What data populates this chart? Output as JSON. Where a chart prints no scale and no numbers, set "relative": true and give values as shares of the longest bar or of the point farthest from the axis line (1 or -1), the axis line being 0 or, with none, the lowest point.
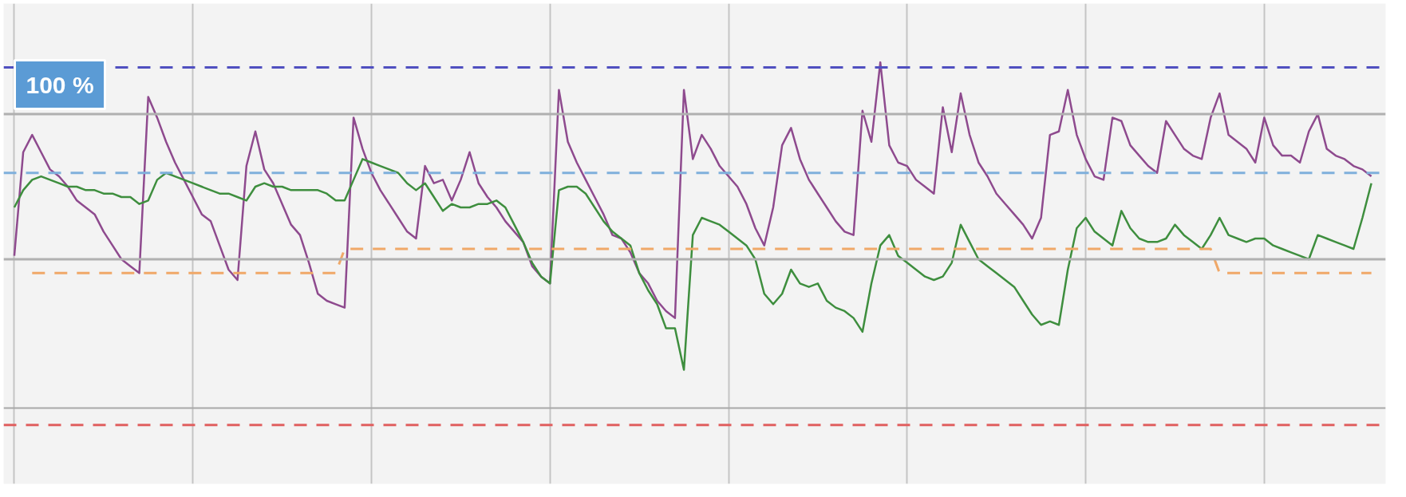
{
  "chart_data": {
    "type": "line",
    "relative": true,
    "tick_labels": false,
    "grid": "x",
    "line_style": "solid",
    "annotations": [
      "100 %"
    ],
    "categories": [
      null,
      null,
      null,
      null,
      null,
      null,
      null,
      null,
      null,
      null,
      null,
      null,
      null,
      null,
      null,
      null,
      null,
      null,
      null,
      null,
      null,
      null,
      null,
      null,
      null,
      null,
      null,
      null,
      null,
      null,
      null,
      null,
      null,
      null,
      null,
      null,
      null,
      null,
      null,
      null,
      null,
      null,
      null,
      null,
      null,
      null,
      null,
      null,
      null,
      null,
      null,
      null,
      null,
      null,
      null,
      null,
      null,
      null,
      null,
      null,
      null,
      null,
      null,
      null,
      null,
      null,
      null,
      null,
      null,
      null,
      null,
      null,
      null,
      null,
      null,
      null,
      null,
      null,
      null,
      null,
      null,
      null,
      null,
      null,
      null,
      null,
      null,
      null,
      null,
      null,
      null,
      null,
      null,
      null,
      null,
      null,
      null,
      null,
      null,
      null,
      null,
      null,
      null,
      null,
      null,
      null,
      null,
      null,
      null,
      null,
      null,
      null,
      null,
      null,
      null,
      null,
      null,
      null,
      null,
      null,
      null,
      null,
      null,
      null,
      null,
      null,
      null,
      null,
      null,
      null,
      null,
      null,
      null,
      null,
      null,
      null,
      null,
      null,
      null,
      null,
      null,
      null,
      null,
      null,
      null,
      null,
      null,
      null,
      null,
      null,
      null,
      null,
      null
    ],
    "series": [
      {
        "color": "#8e4a8e",
        "values": [
          0.44,
          0.74,
          0.79,
          0.74,
          0.69,
          0.67,
          0.64,
          0.6,
          0.58,
          0.56,
          0.51,
          0.47,
          0.43,
          0.41,
          0.39,
          0.9,
          0.84,
          0.77,
          0.71,
          0.66,
          0.61,
          0.56,
          0.54,
          0.47,
          0.4,
          0.37,
          0.7,
          0.8,
          0.69,
          0.65,
          0.59,
          0.53,
          0.5,
          0.42,
          0.33,
          0.31,
          0.3,
          0.29,
          0.84,
          0.75,
          0.68,
          0.63,
          0.59,
          0.55,
          0.51,
          0.49,
          0.7,
          0.65,
          0.66,
          0.6,
          0.66,
          0.74,
          0.65,
          0.61,
          0.58,
          0.54,
          0.51,
          0.48,
          0.41,
          0.38,
          0.36,
          0.92,
          0.77,
          0.71,
          0.66,
          0.61,
          0.56,
          0.5,
          0.49,
          0.45,
          0.39,
          0.36,
          0.31,
          0.28,
          0.26,
          0.92,
          0.72,
          0.79,
          0.75,
          0.7,
          0.67,
          0.64,
          0.59,
          0.52,
          0.47,
          0.58,
          0.76,
          0.81,
          0.72,
          0.66,
          0.62,
          0.58,
          0.54,
          0.51,
          0.5,
          0.86,
          0.77,
          1.0,
          0.76,
          0.71,
          0.7,
          0.66,
          0.64,
          0.62,
          0.87,
          0.74,
          0.91,
          0.79,
          0.71,
          0.67,
          0.62,
          0.59,
          0.56,
          0.53,
          0.49,
          0.55,
          0.79,
          0.8,
          0.92,
          0.79,
          0.72,
          0.67,
          0.66,
          0.84,
          0.83,
          0.76,
          0.73,
          0.7,
          0.68,
          0.83,
          0.79,
          0.75,
          0.73,
          0.72,
          0.84,
          0.91,
          0.79,
          0.77,
          0.75,
          0.71,
          0.84,
          0.76,
          0.73,
          0.73,
          0.71,
          0.8,
          0.85,
          0.75,
          0.73,
          0.72,
          0.7,
          0.69,
          0.67
        ]
      },
      {
        "color": "#3e8e3e",
        "values": [
          0.58,
          0.63,
          0.66,
          0.67,
          0.66,
          0.65,
          0.64,
          0.64,
          0.63,
          0.63,
          0.62,
          0.62,
          0.61,
          0.61,
          0.59,
          0.6,
          0.66,
          0.68,
          0.67,
          0.66,
          0.65,
          0.64,
          0.63,
          0.62,
          0.62,
          0.61,
          0.6,
          0.64,
          0.65,
          0.64,
          0.64,
          0.63,
          0.63,
          0.63,
          0.63,
          0.62,
          0.6,
          0.6,
          0.66,
          0.72,
          0.71,
          0.7,
          0.69,
          0.68,
          0.65,
          0.63,
          0.65,
          0.61,
          0.57,
          0.59,
          0.58,
          0.58,
          0.59,
          0.59,
          0.6,
          0.58,
          0.53,
          0.48,
          0.42,
          0.38,
          0.36,
          0.63,
          0.64,
          0.64,
          0.62,
          0.58,
          0.54,
          0.51,
          0.49,
          0.47,
          0.39,
          0.34,
          0.3,
          0.23,
          0.23,
          0.11,
          0.5,
          0.55,
          0.54,
          0.53,
          0.51,
          0.49,
          0.47,
          0.43,
          0.33,
          0.3,
          0.33,
          0.4,
          0.36,
          0.35,
          0.36,
          0.31,
          0.29,
          0.28,
          0.26,
          0.22,
          0.36,
          0.47,
          0.5,
          0.44,
          0.42,
          0.4,
          0.38,
          0.37,
          0.38,
          0.42,
          0.53,
          0.48,
          0.43,
          0.41,
          0.39,
          0.37,
          0.35,
          0.31,
          0.27,
          0.24,
          0.25,
          0.24,
          0.4,
          0.52,
          0.55,
          0.51,
          0.49,
          0.47,
          0.57,
          0.52,
          0.49,
          0.48,
          0.48,
          0.49,
          0.53,
          0.5,
          0.48,
          0.46,
          0.5,
          0.55,
          0.5,
          0.49,
          0.48,
          0.49,
          0.49,
          0.47,
          0.46,
          0.45,
          0.44,
          0.43,
          0.5,
          0.49,
          0.48,
          0.47,
          0.46,
          0.55,
          0.65
        ]
      },
      {
        "color": "#f0a868",
        "line_style": "dashed",
        "values": [
          null,
          null,
          0.39,
          0.39,
          0.39,
          0.39,
          0.39,
          0.39,
          0.39,
          0.39,
          0.39,
          0.39,
          0.39,
          0.39,
          0.39,
          0.39,
          0.39,
          0.39,
          0.39,
          0.39,
          0.39,
          0.39,
          0.39,
          0.39,
          0.39,
          0.39,
          0.39,
          0.39,
          0.39,
          0.39,
          0.39,
          0.39,
          0.39,
          0.39,
          0.39,
          0.39,
          0.39,
          0.46,
          0.46,
          0.46,
          0.46,
          0.46,
          0.46,
          0.46,
          0.46,
          0.46,
          0.46,
          0.46,
          0.46,
          0.46,
          0.46,
          0.46,
          0.46,
          0.46,
          0.46,
          0.46,
          0.46,
          0.46,
          0.46,
          0.46,
          0.46,
          0.46,
          0.46,
          0.46,
          0.46,
          0.46,
          0.46,
          0.46,
          0.46,
          0.46,
          0.46,
          0.46,
          0.46,
          0.46,
          0.46,
          0.46,
          0.46,
          0.46,
          0.46,
          0.46,
          0.46,
          0.46,
          0.46,
          0.46,
          0.46,
          0.46,
          0.46,
          0.46,
          0.46,
          0.46,
          0.46,
          0.46,
          0.46,
          0.46,
          0.46,
          0.46,
          0.46,
          0.46,
          0.46,
          0.46,
          0.46,
          0.46,
          0.46,
          0.46,
          0.46,
          0.46,
          0.46,
          0.46,
          0.46,
          0.46,
          0.46,
          0.46,
          0.46,
          0.46,
          0.46,
          0.46,
          0.46,
          0.46,
          0.46,
          0.46,
          0.46,
          0.46,
          0.46,
          0.46,
          0.46,
          0.46,
          0.46,
          0.46,
          0.46,
          0.46,
          0.46,
          0.46,
          0.46,
          0.46,
          0.46,
          0.39,
          0.39,
          0.39,
          0.39,
          0.39,
          0.39,
          0.39,
          0.39,
          0.39,
          0.39,
          0.39,
          0.39,
          0.39,
          0.39,
          0.39,
          0.39,
          0.39,
          0.39
        ]
      }
    ],
    "ref_lines": [
      {
        "axis": "y",
        "value": 0.985,
        "color": "#5050c0",
        "line_style": "dashed"
      },
      {
        "axis": "y",
        "value": 0.85,
        "color": "#b0b0b0",
        "line_style": "solid"
      },
      {
        "axis": "y",
        "value": 0.43,
        "color": "#b0b0b0",
        "line_style": "solid"
      },
      {
        "axis": "y",
        "value": 0.68,
        "color": "#7fb0dc",
        "line_style": "dashed"
      },
      {
        "axis": "y",
        "value": -0.05,
        "color": "#e06060",
        "line_style": "dashed"
      }
    ]
  }
}
